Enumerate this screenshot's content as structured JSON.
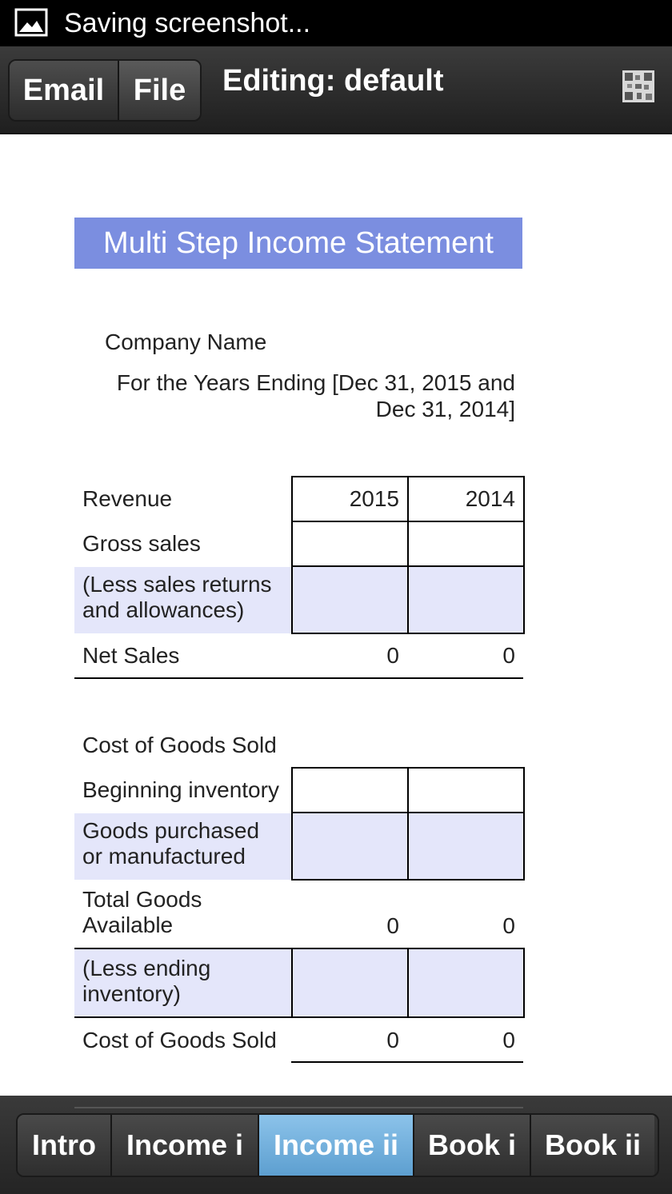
{
  "status_bar": {
    "text": "Saving screenshot...",
    "icon": "image-icon"
  },
  "action_bar": {
    "email_label": "Email",
    "file_label": "File",
    "title": "Editing: default",
    "menu_icon": "qr-code-icon"
  },
  "document": {
    "heading": "Multi Step Income Statement",
    "company": "Company Name",
    "period_line1": "For the Years Ending [Dec 31, 2015 and",
    "period_line2": "Dec 31, 2014]",
    "revenue": {
      "header": "Revenue",
      "col1": "2015",
      "col2": "2014",
      "gross_sales": "Gross sales",
      "less_returns_1": "(Less sales returns",
      "less_returns_2": "and allowances)",
      "net_sales": "Net Sales",
      "net_sales_2015": "0",
      "net_sales_2014": "0"
    },
    "cogs": {
      "header": "Cost of Goods Sold",
      "beginning_inventory": "Beginning inventory",
      "goods_purchased_1": "Goods purchased",
      "goods_purchased_2": "or manufactured",
      "total_goods_1": "Total Goods",
      "total_goods_2": "Available",
      "total_2015": "0",
      "total_2014": "0",
      "less_ending_1": "(Less ending",
      "less_ending_2": "inventory)",
      "cogs_label": "Cost of Goods Sold",
      "cogs_2015": "0",
      "cogs_2014": "0"
    }
  },
  "tabs": [
    {
      "label": "Intro"
    },
    {
      "label": "Income i"
    },
    {
      "label": "Income ii",
      "active": true
    },
    {
      "label": "Book i"
    },
    {
      "label": "Book ii"
    }
  ],
  "colors": {
    "banner": "#7b8ee0",
    "row_fill": "#e4e6fa",
    "active_tab": "#6fb0de"
  }
}
